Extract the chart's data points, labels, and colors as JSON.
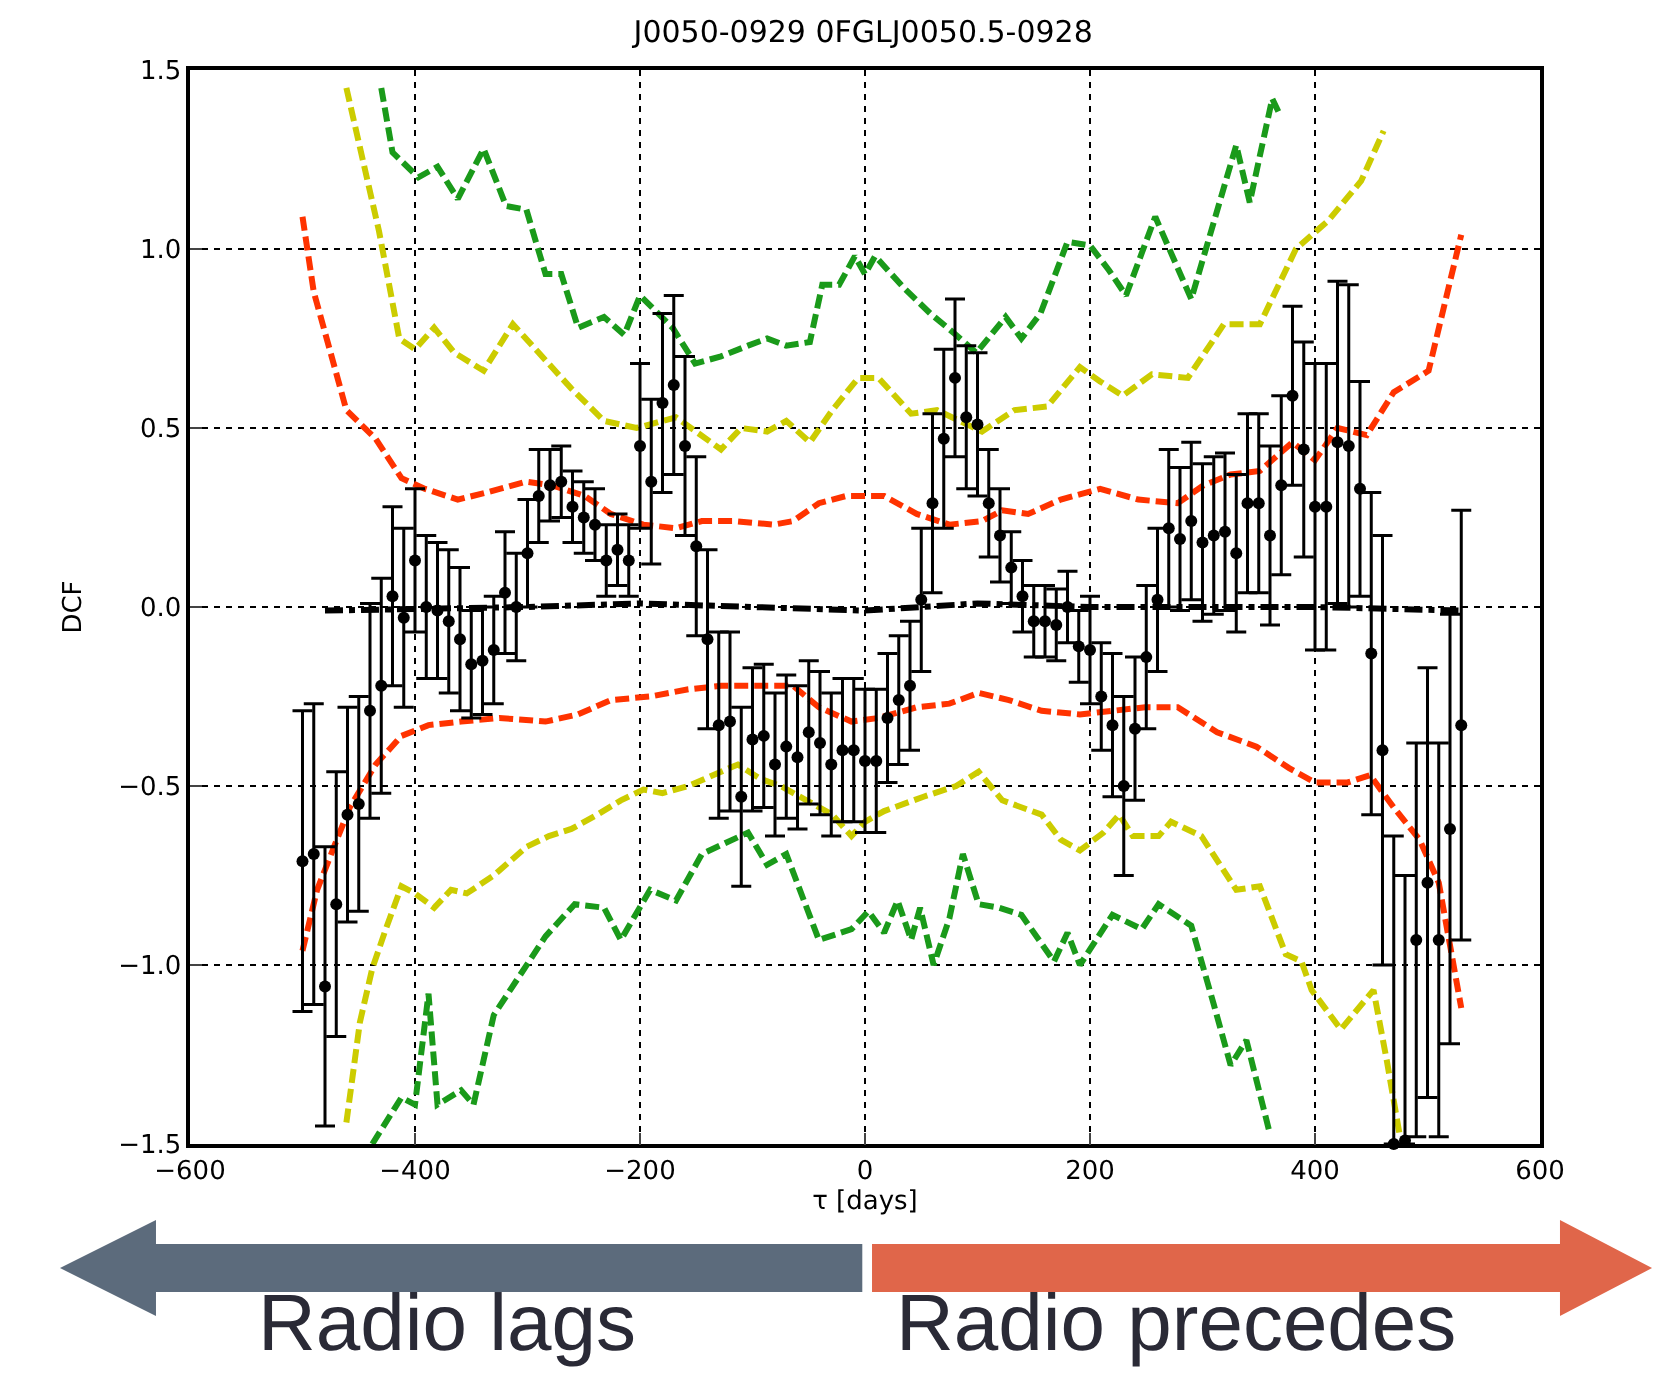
{
  "chart_data": {
    "type": "scatter",
    "title": "J0050-0929 0FGLJ0050.5-0928",
    "xlabel": "τ [days]",
    "ylabel": "DCF",
    "xlim": [
      -600,
      600
    ],
    "ylim": [
      -1.5,
      1.5
    ],
    "xticks": [
      {
        "value": -600,
        "label": "−600"
      },
      {
        "value": -400,
        "label": "−400"
      },
      {
        "value": -200,
        "label": "−200"
      },
      0,
      200,
      400,
      600
    ],
    "yticks": [
      {
        "value": -1.5,
        "label": "−1.5"
      },
      {
        "value": -1.0,
        "label": "−1.0"
      },
      {
        "value": -0.5,
        "label": "−0.5"
      },
      {
        "value": 0,
        "label": "0.0"
      },
      {
        "value": 0.5,
        "label": "0.5"
      },
      {
        "value": 1.0,
        "label": "1.0"
      },
      {
        "value": 1.5,
        "label": "1.5"
      }
    ],
    "grid": true,
    "annotations": [
      "Radio lags",
      "Radio precedes"
    ],
    "series": [
      {
        "type": "line",
        "color": "#1a9a1a",
        "line_style": "dashed",
        "marker": "none",
        "x": [
          -430,
          -420,
          -397,
          -380,
          -362,
          -339,
          -319,
          -301,
          -284,
          -270,
          -255,
          -232,
          -214,
          -200,
          -171,
          -151,
          -128,
          -104,
          -87,
          -70,
          -49,
          -38,
          -23,
          -9,
          0,
          9,
          35,
          58,
          81,
          99,
          125,
          139,
          156,
          180,
          200,
          217,
          232,
          258,
          290,
          330,
          342,
          362,
          368
        ],
        "values": [
          1.45,
          1.27,
          1.2,
          1.23,
          1.14,
          1.28,
          1.12,
          1.11,
          0.93,
          0.93,
          0.78,
          0.81,
          0.76,
          0.87,
          0.78,
          0.68,
          0.7,
          0.73,
          0.75,
          0.73,
          0.74,
          0.9,
          0.9,
          0.98,
          0.93,
          0.98,
          0.89,
          0.82,
          0.76,
          0.71,
          0.81,
          0.75,
          0.82,
          1.02,
          1.01,
          0.94,
          0.87,
          1.09,
          0.86,
          1.29,
          1.13,
          1.42,
          1.38
        ]
      },
      {
        "type": "line",
        "color": "#cccc00",
        "line_style": "dashed",
        "marker": "none",
        "x": [
          -461,
          -432,
          -414,
          -400,
          -383,
          -365,
          -339,
          -313,
          -290,
          -261,
          -232,
          -203,
          -168,
          -128,
          -110,
          -87,
          -70,
          -49,
          -29,
          -6,
          12,
          41,
          64,
          104,
          133,
          162,
          191,
          209,
          229,
          255,
          287,
          319,
          351,
          383,
          412,
          441,
          461
        ],
        "values": [
          1.45,
          1.05,
          0.75,
          0.72,
          0.78,
          0.71,
          0.66,
          0.79,
          0.71,
          0.61,
          0.52,
          0.5,
          0.53,
          0.44,
          0.5,
          0.49,
          0.52,
          0.46,
          0.55,
          0.64,
          0.64,
          0.54,
          0.55,
          0.49,
          0.55,
          0.56,
          0.67,
          0.63,
          0.59,
          0.65,
          0.64,
          0.79,
          0.79,
          1.0,
          1.08,
          1.19,
          1.33
        ]
      },
      {
        "type": "line",
        "color": "#ff3300",
        "line_style": "dashed",
        "marker": "none",
        "x": [
          -500,
          -490,
          -475,
          -461,
          -435,
          -412,
          -391,
          -362,
          -336,
          -301,
          -278,
          -249,
          -226,
          -197,
          -168,
          -145,
          -116,
          -81,
          -64,
          -41,
          -17,
          17,
          46,
          75,
          104,
          122,
          145,
          174,
          209,
          243,
          278,
          301,
          325,
          351,
          380,
          400,
          420,
          446,
          470,
          501,
          530
        ],
        "values": [
          1.09,
          0.88,
          0.71,
          0.55,
          0.47,
          0.36,
          0.33,
          0.3,
          0.32,
          0.35,
          0.34,
          0.31,
          0.26,
          0.23,
          0.22,
          0.24,
          0.24,
          0.23,
          0.24,
          0.29,
          0.31,
          0.31,
          0.26,
          0.23,
          0.24,
          0.27,
          0.26,
          0.3,
          0.33,
          0.3,
          0.29,
          0.34,
          0.37,
          0.38,
          0.46,
          0.41,
          0.5,
          0.48,
          0.6,
          0.66,
          1.04
        ]
      },
      {
        "type": "line",
        "color": "#000000",
        "line_style": "dashdot",
        "marker": "none",
        "x": [
          -480,
          -300,
          -200,
          -100,
          0,
          100,
          200,
          300,
          400,
          530
        ],
        "values": [
          -0.01,
          0.0,
          0.01,
          0.0,
          -0.01,
          0.01,
          0.0,
          0.0,
          0.0,
          -0.01
        ]
      },
      {
        "type": "line",
        "color": "#ff3300",
        "line_style": "dashed",
        "marker": "none",
        "x": [
          -500,
          -487,
          -472,
          -458,
          -435,
          -412,
          -388,
          -359,
          -325,
          -284,
          -255,
          -226,
          -191,
          -157,
          -128,
          -93,
          -64,
          -41,
          -12,
          12,
          46,
          75,
          101,
          128,
          157,
          191,
          220,
          249,
          278,
          313,
          348,
          377,
          400,
          429,
          449,
          470,
          493,
          510,
          530
        ],
        "values": [
          -0.96,
          -0.79,
          -0.67,
          -0.56,
          -0.44,
          -0.36,
          -0.33,
          -0.32,
          -0.31,
          -0.32,
          -0.3,
          -0.26,
          -0.25,
          -0.23,
          -0.22,
          -0.22,
          -0.22,
          -0.28,
          -0.32,
          -0.31,
          -0.28,
          -0.27,
          -0.24,
          -0.26,
          -0.29,
          -0.3,
          -0.29,
          -0.28,
          -0.28,
          -0.35,
          -0.39,
          -0.45,
          -0.49,
          -0.49,
          -0.47,
          -0.56,
          -0.65,
          -0.77,
          -1.12
        ]
      },
      {
        "type": "line",
        "color": "#cccc00",
        "line_style": "dashed",
        "marker": "none",
        "x": [
          -461,
          -449,
          -438,
          -426,
          -412,
          -400,
          -383,
          -368,
          -354,
          -330,
          -301,
          -281,
          -261,
          -238,
          -217,
          -197,
          -180,
          -157,
          -128,
          -113,
          -93,
          -75,
          -52,
          -29,
          -12,
          0,
          17,
          52,
          81,
          101,
          122,
          157,
          174,
          191,
          212,
          226,
          238,
          261,
          272,
          299,
          330,
          351,
          374,
          388,
          397,
          423,
          452,
          464,
          475
        ],
        "values": [
          -1.44,
          -1.16,
          -1.01,
          -0.9,
          -0.78,
          -0.8,
          -0.84,
          -0.79,
          -0.8,
          -0.75,
          -0.67,
          -0.64,
          -0.62,
          -0.58,
          -0.54,
          -0.51,
          -0.52,
          -0.5,
          -0.46,
          -0.44,
          -0.48,
          -0.5,
          -0.54,
          -0.58,
          -0.64,
          -0.6,
          -0.57,
          -0.53,
          -0.5,
          -0.46,
          -0.54,
          -0.58,
          -0.65,
          -0.68,
          -0.63,
          -0.58,
          -0.64,
          -0.64,
          -0.6,
          -0.64,
          -0.79,
          -0.78,
          -0.97,
          -0.99,
          -1.07,
          -1.18,
          -1.07,
          -1.27,
          -1.47
        ]
      },
      {
        "type": "line",
        "color": "#1a9a1a",
        "line_style": "dashed",
        "marker": "none",
        "x": [
          -438,
          -412,
          -400,
          -388,
          -380,
          -359,
          -348,
          -330,
          -307,
          -284,
          -258,
          -232,
          -217,
          -191,
          -168,
          -145,
          -104,
          -87,
          -70,
          -41,
          -12,
          3,
          17,
          29,
          41,
          49,
          61,
          75,
          87,
          101,
          119,
          139,
          168,
          180,
          191,
          220,
          246,
          261,
          290,
          310,
          325,
          339,
          359
        ],
        "values": [
          -1.5,
          -1.37,
          -1.39,
          -1.08,
          -1.39,
          -1.35,
          -1.39,
          -1.14,
          -1.03,
          -0.92,
          -0.83,
          -0.84,
          -0.93,
          -0.79,
          -0.82,
          -0.69,
          -0.63,
          -0.72,
          -0.69,
          -0.93,
          -0.9,
          -0.85,
          -0.91,
          -0.82,
          -0.93,
          -0.84,
          -1.0,
          -0.87,
          -0.69,
          -0.83,
          -0.84,
          -0.86,
          -0.99,
          -0.91,
          -1.0,
          -0.86,
          -0.9,
          -0.83,
          -0.89,
          -1.11,
          -1.28,
          -1.21,
          -1.46
        ]
      },
      {
        "type": "scatter",
        "color": "#000000",
        "marker": "circle",
        "x": [
          -500,
          -490,
          -480,
          -470,
          -460,
          -450,
          -440,
          -430,
          -420,
          -410,
          -400,
          -390,
          -380,
          -370,
          -360,
          -350,
          -340,
          -330,
          -320,
          -310,
          -300,
          -290,
          -280,
          -270,
          -260,
          -250,
          -240,
          -230,
          -220,
          -210,
          -200,
          -190,
          -180,
          -170,
          -160,
          -150,
          -140,
          -130,
          -120,
          -110,
          -100,
          -90,
          -80,
          -70,
          -60,
          -50,
          -40,
          -30,
          -20,
          -10,
          0,
          10,
          20,
          30,
          40,
          50,
          60,
          70,
          80,
          90,
          100,
          110,
          120,
          130,
          140,
          150,
          160,
          170,
          180,
          190,
          200,
          210,
          220,
          230,
          240,
          250,
          260,
          270,
          280,
          290,
          300,
          310,
          320,
          330,
          340,
          350,
          360,
          370,
          380,
          390,
          400,
          410,
          420,
          430,
          440,
          450,
          460,
          470,
          480,
          490,
          500,
          510,
          520,
          530
        ],
        "values": [
          -0.71,
          -0.69,
          -1.06,
          -0.83,
          -0.58,
          -0.55,
          -0.29,
          -0.22,
          0.03,
          -0.03,
          0.13,
          0.0,
          -0.01,
          -0.04,
          -0.09,
          -0.16,
          -0.15,
          -0.12,
          0.04,
          0.0,
          0.15,
          0.31,
          0.34,
          0.35,
          0.28,
          0.25,
          0.23,
          0.13,
          0.16,
          0.13,
          0.45,
          0.35,
          0.57,
          0.62,
          0.45,
          0.17,
          -0.09,
          -0.33,
          -0.32,
          -0.53,
          -0.37,
          -0.36,
          -0.44,
          -0.39,
          -0.42,
          -0.35,
          -0.38,
          -0.44,
          -0.4,
          -0.4,
          -0.43,
          -0.43,
          -0.31,
          -0.26,
          -0.22,
          0.02,
          0.29,
          0.47,
          0.64,
          0.53,
          0.51,
          0.29,
          0.2,
          0.11,
          0.03,
          -0.04,
          -0.04,
          -0.05,
          0.0,
          -0.11,
          -0.12,
          -0.25,
          -0.33,
          -0.5,
          -0.34,
          -0.14,
          0.02,
          0.22,
          0.19,
          0.24,
          0.18,
          0.2,
          0.21,
          0.15,
          0.29,
          0.29,
          0.2,
          0.34,
          0.59,
          0.44,
          0.28,
          0.28,
          0.46,
          0.45,
          0.33,
          -0.13,
          -0.4,
          -1.5,
          -1.49,
          -0.93,
          -0.77,
          -0.93,
          -0.62,
          -0.33
        ],
        "errors": [
          0.42,
          0.42,
          0.39,
          0.37,
          0.3,
          0.3,
          0.3,
          0.3,
          0.25,
          0.25,
          0.2,
          0.2,
          0.19,
          0.2,
          0.2,
          0.15,
          0.15,
          0.15,
          0.17,
          0.15,
          0.15,
          0.13,
          0.1,
          0.1,
          0.1,
          0.1,
          0.1,
          0.1,
          0.1,
          0.1,
          0.23,
          0.23,
          0.25,
          0.25,
          0.25,
          0.25,
          0.25,
          0.26,
          0.25,
          0.25,
          0.2,
          0.2,
          0.2,
          0.2,
          0.2,
          0.2,
          0.2,
          0.2,
          0.2,
          0.2,
          0.2,
          0.2,
          0.18,
          0.18,
          0.18,
          0.2,
          0.25,
          0.25,
          0.22,
          0.2,
          0.2,
          0.15,
          0.13,
          0.1,
          0.1,
          0.1,
          0.1,
          0.1,
          0.1,
          0.1,
          0.15,
          0.15,
          0.2,
          0.25,
          0.2,
          0.2,
          0.2,
          0.22,
          0.2,
          0.22,
          0.22,
          0.22,
          0.22,
          0.22,
          0.25,
          0.25,
          0.25,
          0.25,
          0.25,
          0.3,
          0.4,
          0.4,
          0.45,
          0.45,
          0.3,
          0.45,
          0.6,
          [
            -1.5,
            -0.64
          ],
          [
            -1.5,
            -0.75
          ],
          0.55,
          0.6,
          0.55,
          0.6,
          0.6
        ]
      }
    ]
  }
}
